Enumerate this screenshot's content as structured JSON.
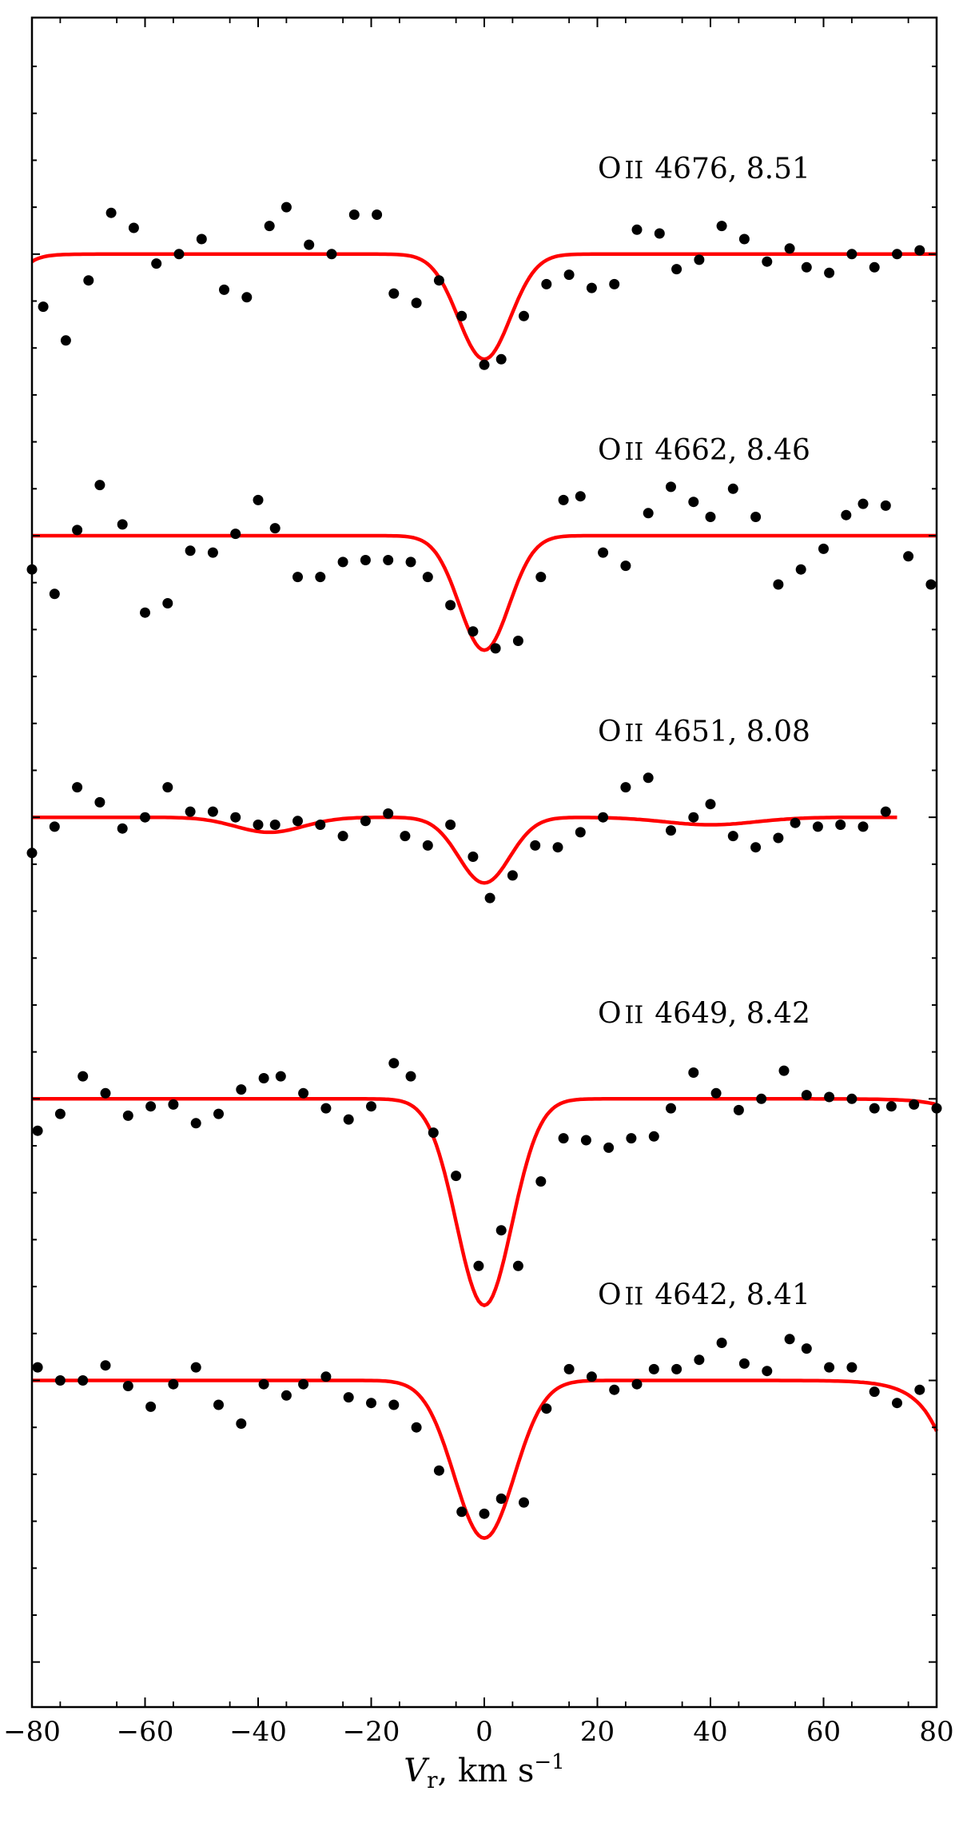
{
  "chart_data": {
    "type": "scatter",
    "xlabel": "V_r, km s^-1",
    "xlabel_parts": {
      "main": "V",
      "sub": "r",
      "rest": ", km s",
      "sup": "−1"
    },
    "xlim": [
      -80,
      80
    ],
    "x_ticks": [
      -80,
      -60,
      -40,
      -20,
      0,
      20,
      40,
      60,
      80
    ],
    "x_tick_labels": [
      "−80",
      "−60",
      "−40",
      "−20",
      "0",
      "20",
      "40",
      "60",
      "80"
    ],
    "grid": false,
    "legend": "none",
    "colors": {
      "observed": "#000000",
      "model": "#ff0000"
    },
    "series": [
      {
        "name": "O II 4676, 8.51",
        "label_parts": {
          "elem": "O",
          "ion": "II",
          "text": "4676, 8.51"
        },
        "baseline": 0,
        "model": {
          "depth": 0.56,
          "sigma": 4.6,
          "center": 0,
          "left_drop": 0.04,
          "right_drop": 0,
          "side_dip": 0
        },
        "points": [
          [
            -78,
            -0.28
          ],
          [
            -74,
            -0.46
          ],
          [
            -70,
            -0.14
          ],
          [
            -66,
            0.22
          ],
          [
            -62,
            0.14
          ],
          [
            -58,
            -0.05
          ],
          [
            -54,
            0.0
          ],
          [
            -50,
            0.08
          ],
          [
            -46,
            -0.19
          ],
          [
            -42,
            -0.23
          ],
          [
            -38,
            0.15
          ],
          [
            -35,
            0.25
          ],
          [
            -31,
            0.05
          ],
          [
            -27,
            0.0
          ],
          [
            -23,
            0.21
          ],
          [
            -19,
            0.21
          ],
          [
            -16,
            -0.21
          ],
          [
            -12,
            -0.26
          ],
          [
            -8,
            -0.14
          ],
          [
            -4,
            -0.33
          ],
          [
            0,
            -0.59
          ],
          [
            3,
            -0.56
          ],
          [
            7,
            -0.33
          ],
          [
            11,
            -0.16
          ],
          [
            15,
            -0.11
          ],
          [
            19,
            -0.18
          ],
          [
            23,
            -0.16
          ],
          [
            27,
            0.13
          ],
          [
            31,
            0.11
          ],
          [
            34,
            -0.08
          ],
          [
            38,
            -0.03
          ],
          [
            42,
            0.15
          ],
          [
            46,
            0.08
          ],
          [
            50,
            -0.04
          ],
          [
            54,
            0.03
          ],
          [
            57,
            -0.07
          ],
          [
            61,
            -0.1
          ],
          [
            65,
            0.0
          ],
          [
            69,
            -0.07
          ],
          [
            73,
            0.0
          ],
          [
            77,
            0.02
          ]
        ]
      },
      {
        "name": "O II 4662, 8.46",
        "label_parts": {
          "elem": "O",
          "ion": "II",
          "text": "4662, 8.46"
        },
        "baseline": -1.5,
        "model": {
          "depth": 0.61,
          "sigma": 4.4,
          "center": 0,
          "left_drop": 0,
          "right_drop": 0,
          "side_dip": 0
        },
        "points": [
          [
            -80,
            -1.68
          ],
          [
            -76,
            -1.81
          ],
          [
            -72,
            -1.47
          ],
          [
            -68,
            -1.23
          ],
          [
            -64,
            -1.44
          ],
          [
            -60,
            -1.91
          ],
          [
            -56,
            -1.86
          ],
          [
            -52,
            -1.58
          ],
          [
            -48,
            -1.59
          ],
          [
            -44,
            -1.49
          ],
          [
            -40,
            -1.31
          ],
          [
            -37,
            -1.46
          ],
          [
            -33,
            -1.72
          ],
          [
            -29,
            -1.72
          ],
          [
            -25,
            -1.64
          ],
          [
            -21,
            -1.63
          ],
          [
            -17,
            -1.63
          ],
          [
            -13,
            -1.64
          ],
          [
            -10,
            -1.72
          ],
          [
            -6,
            -1.87
          ],
          [
            -2,
            -2.01
          ],
          [
            2,
            -2.1
          ],
          [
            6,
            -2.06
          ],
          [
            10,
            -1.72
          ],
          [
            14,
            -1.31
          ],
          [
            17,
            -1.29
          ],
          [
            21,
            -1.59
          ],
          [
            25,
            -1.66
          ],
          [
            29,
            -1.38
          ],
          [
            33,
            -1.24
          ],
          [
            37,
            -1.32
          ],
          [
            40,
            -1.4
          ],
          [
            44,
            -1.25
          ],
          [
            48,
            -1.4
          ],
          [
            52,
            -1.76
          ],
          [
            56,
            -1.68
          ],
          [
            60,
            -1.57
          ],
          [
            64,
            -1.39
          ],
          [
            67,
            -1.33
          ],
          [
            71,
            -1.34
          ],
          [
            75,
            -1.61
          ],
          [
            79,
            -1.76
          ]
        ]
      },
      {
        "name": "O II 4651, 8.08",
        "label_parts": {
          "elem": "O",
          "ion": "II",
          "text": "4651, 8.08"
        },
        "baseline": -3.0,
        "x_end": 73,
        "model": {
          "depth": 0.35,
          "sigma": 4.5,
          "center": 0,
          "left_drop": 0,
          "right_drop": 0,
          "side_dip": 0.08
        },
        "points": [
          [
            -80,
            -3.19
          ],
          [
            -76,
            -3.05
          ],
          [
            -72,
            -2.84
          ],
          [
            -68,
            -2.92
          ],
          [
            -64,
            -3.06
          ],
          [
            -60,
            -3.0
          ],
          [
            -56,
            -2.84
          ],
          [
            -52,
            -2.97
          ],
          [
            -48,
            -2.97
          ],
          [
            -44,
            -3.0
          ],
          [
            -40,
            -3.04
          ],
          [
            -37,
            -3.04
          ],
          [
            -33,
            -3.02
          ],
          [
            -29,
            -3.04
          ],
          [
            -25,
            -3.1
          ],
          [
            -21,
            -3.02
          ],
          [
            -17,
            -2.98
          ],
          [
            -14,
            -3.1
          ],
          [
            -10,
            -3.15
          ],
          [
            -6,
            -3.04
          ],
          [
            -2,
            -3.21
          ],
          [
            1,
            -3.43
          ],
          [
            5,
            -3.31
          ],
          [
            9,
            -3.15
          ],
          [
            13,
            -3.16
          ],
          [
            17,
            -3.08
          ],
          [
            21,
            -3.0
          ],
          [
            25,
            -2.84
          ],
          [
            29,
            -2.79
          ],
          [
            33,
            -3.07
          ],
          [
            37,
            -3.0
          ],
          [
            40,
            -2.93
          ],
          [
            44,
            -3.1
          ],
          [
            48,
            -3.16
          ],
          [
            52,
            -3.11
          ],
          [
            55,
            -3.03
          ],
          [
            59,
            -3.05
          ],
          [
            63,
            -3.04
          ],
          [
            67,
            -3.05
          ],
          [
            71,
            -2.97
          ]
        ]
      },
      {
        "name": "O II 4649, 8.42",
        "label_parts": {
          "elem": "O",
          "ion": "II",
          "text": "4649, 8.42"
        },
        "baseline": -4.5,
        "model": {
          "depth": 1.1,
          "sigma": 4.9,
          "center": 0,
          "left_drop": 0,
          "right_drop": 0.03,
          "side_dip": 0
        },
        "points": [
          [
            -79,
            -4.67
          ],
          [
            -75,
            -4.58
          ],
          [
            -71,
            -4.38
          ],
          [
            -67,
            -4.47
          ],
          [
            -63,
            -4.59
          ],
          [
            -59,
            -4.54
          ],
          [
            -55,
            -4.53
          ],
          [
            -51,
            -4.63
          ],
          [
            -47,
            -4.58
          ],
          [
            -43,
            -4.45
          ],
          [
            -39,
            -4.39
          ],
          [
            -36,
            -4.38
          ],
          [
            -32,
            -4.47
          ],
          [
            -28,
            -4.55
          ],
          [
            -24,
            -4.61
          ],
          [
            -20,
            -4.54
          ],
          [
            -16,
            -4.31
          ],
          [
            -13,
            -4.38
          ],
          [
            -9,
            -4.68
          ],
          [
            -5,
            -4.91
          ],
          [
            -1,
            -5.39
          ],
          [
            3,
            -5.2
          ],
          [
            6,
            -5.39
          ],
          [
            10,
            -4.94
          ],
          [
            14,
            -4.71
          ],
          [
            18,
            -4.72
          ],
          [
            22,
            -4.76
          ],
          [
            26,
            -4.71
          ],
          [
            30,
            -4.7
          ],
          [
            33,
            -4.55
          ],
          [
            37,
            -4.36
          ],
          [
            41,
            -4.47
          ],
          [
            45,
            -4.56
          ],
          [
            49,
            -4.5
          ],
          [
            53,
            -4.35
          ],
          [
            57,
            -4.48
          ],
          [
            61,
            -4.49
          ],
          [
            65,
            -4.5
          ],
          [
            69,
            -4.55
          ],
          [
            72,
            -4.54
          ],
          [
            76,
            -4.53
          ],
          [
            80,
            -4.55
          ]
        ]
      },
      {
        "name": "O II 4642, 8.41",
        "label_parts": {
          "elem": "O",
          "ion": "II",
          "text": "4642, 8.41"
        },
        "baseline": -6.0,
        "model": {
          "depth": 0.84,
          "sigma": 5.3,
          "center": 0,
          "left_drop": 0,
          "right_drop": 0.27,
          "side_dip": 0
        },
        "points": [
          [
            -79,
            -5.93
          ],
          [
            -75,
            -6.0
          ],
          [
            -71,
            -6.0
          ],
          [
            -67,
            -5.92
          ],
          [
            -63,
            -6.03
          ],
          [
            -59,
            -6.14
          ],
          [
            -55,
            -6.02
          ],
          [
            -51,
            -5.93
          ],
          [
            -47,
            -6.13
          ],
          [
            -43,
            -6.23
          ],
          [
            -39,
            -6.02
          ],
          [
            -35,
            -6.08
          ],
          [
            -32,
            -6.02
          ],
          [
            -28,
            -5.98
          ],
          [
            -24,
            -6.09
          ],
          [
            -20,
            -6.12
          ],
          [
            -16,
            -6.13
          ],
          [
            -12,
            -6.25
          ],
          [
            -8,
            -6.48
          ],
          [
            -4,
            -6.7
          ],
          [
            0,
            -6.71
          ],
          [
            3,
            -6.63
          ],
          [
            7,
            -6.65
          ],
          [
            11,
            -6.15
          ],
          [
            15,
            -5.94
          ],
          [
            19,
            -5.98
          ],
          [
            23,
            -6.05
          ],
          [
            27,
            -6.02
          ],
          [
            30,
            -5.94
          ],
          [
            34,
            -5.94
          ],
          [
            38,
            -5.89
          ],
          [
            42,
            -5.8
          ],
          [
            46,
            -5.91
          ],
          [
            50,
            -5.95
          ],
          [
            54,
            -5.78
          ],
          [
            57,
            -5.83
          ],
          [
            61,
            -5.93
          ],
          [
            65,
            -5.93
          ],
          [
            69,
            -6.06
          ],
          [
            73,
            -6.12
          ],
          [
            77,
            -6.05
          ]
        ]
      }
    ]
  }
}
